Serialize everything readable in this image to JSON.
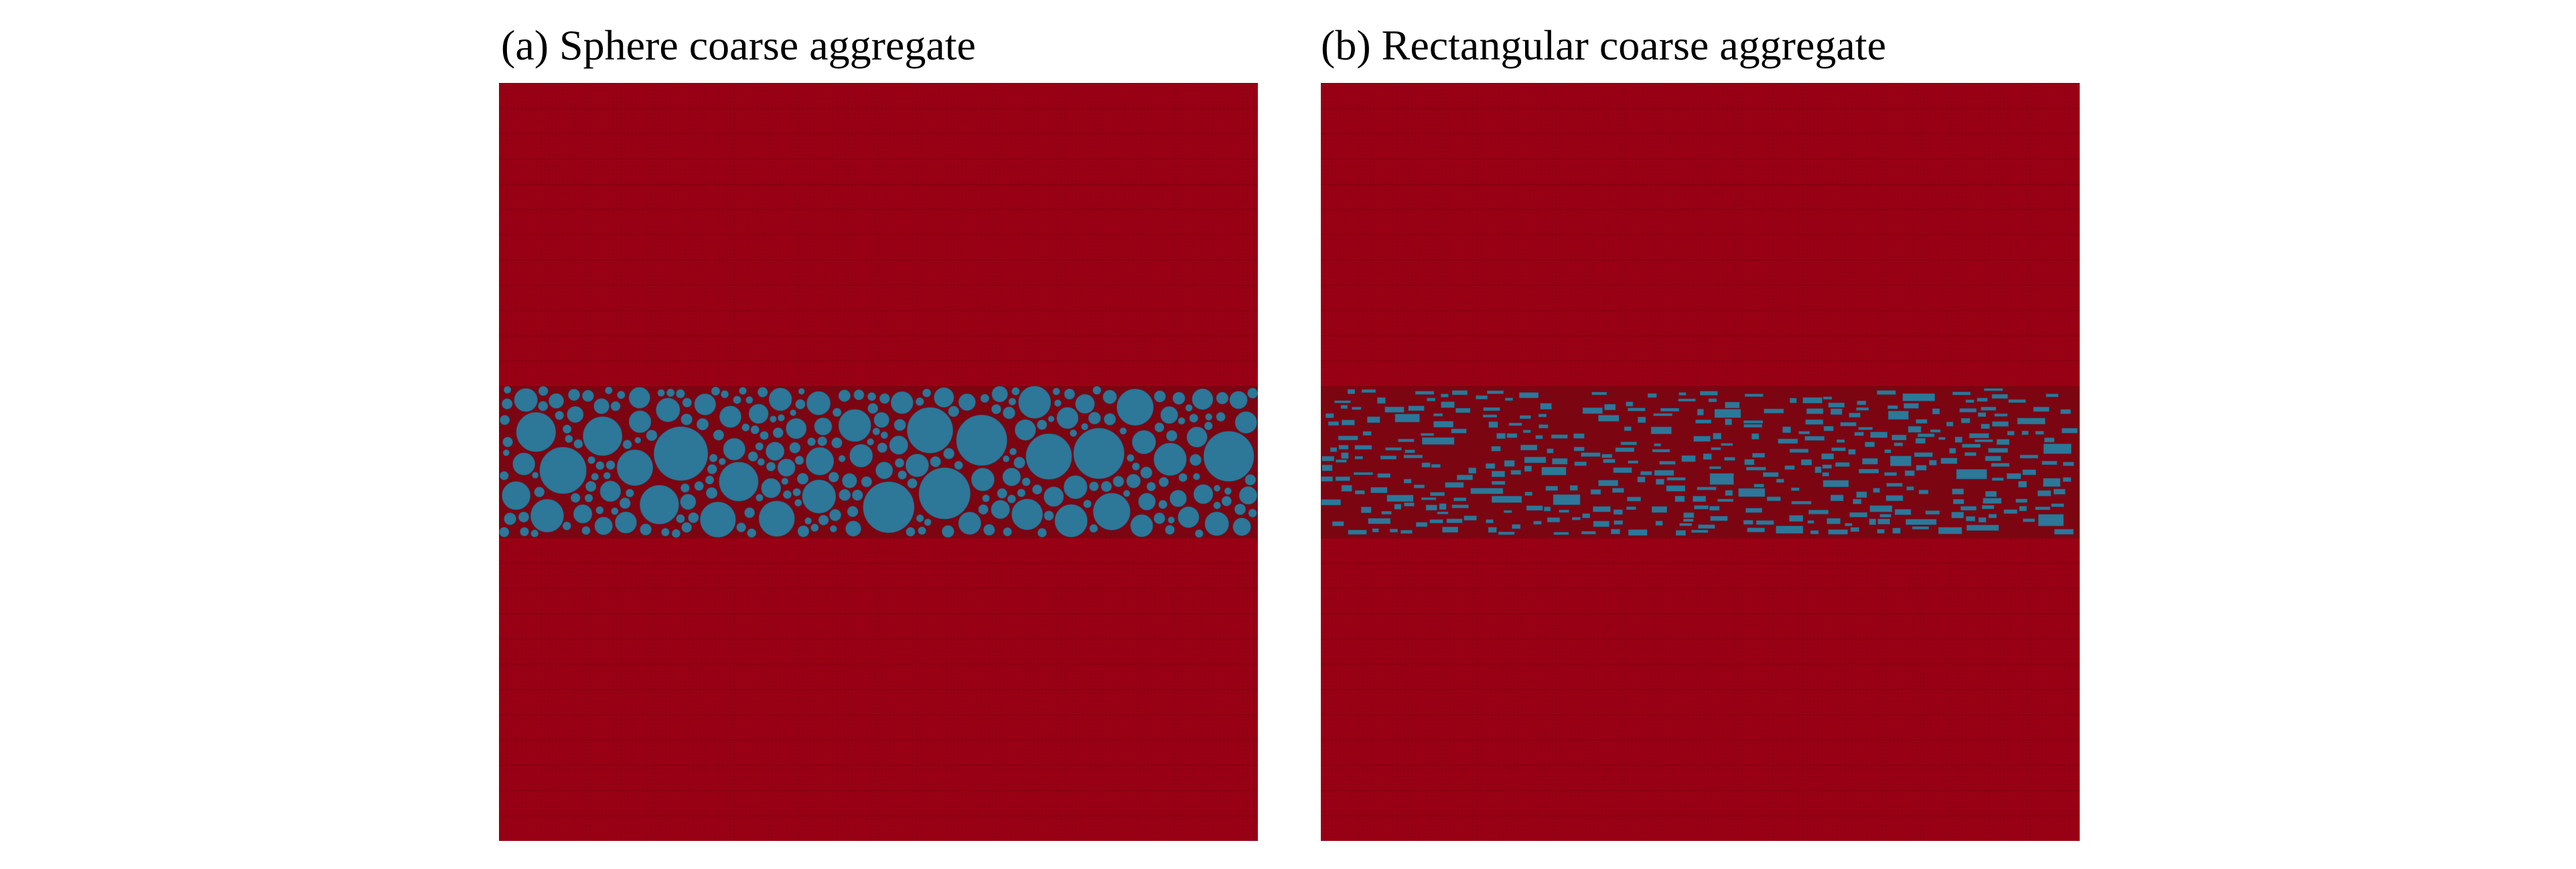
{
  "figure": {
    "panels": [
      {
        "id": "a",
        "title": "(a) Sphere coarse aggregate",
        "aggregate_shape": "sphere"
      },
      {
        "id": "b",
        "title": "(b) Rectangular coarse aggregate",
        "aggregate_shape": "rectangle"
      }
    ],
    "colors": {
      "matrix": "#9a0014",
      "mesh_line": "#5c000c",
      "band_matrix": "#7c0512",
      "aggregate": "#2d7798"
    }
  }
}
